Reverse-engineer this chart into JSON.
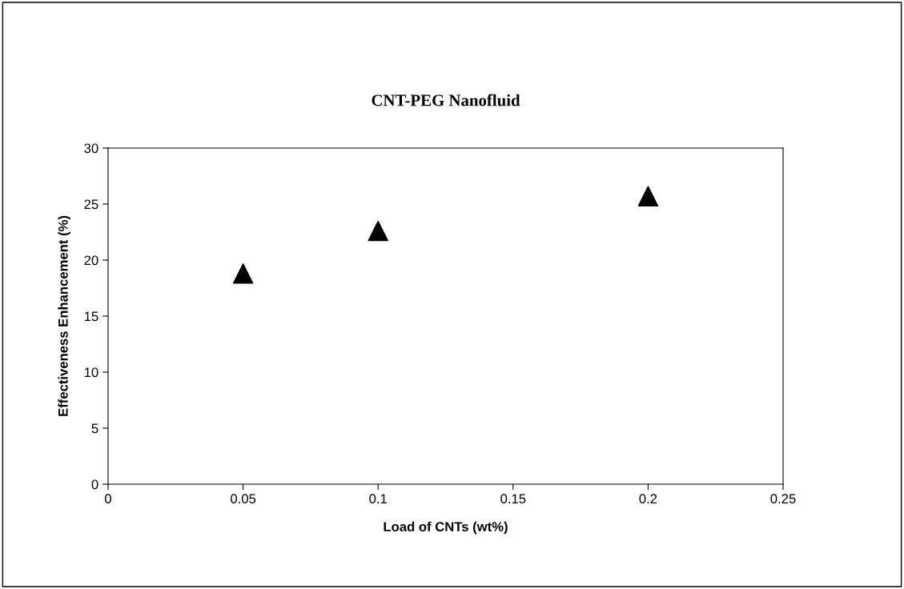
{
  "chart_data": {
    "type": "scatter",
    "title": "CNT-PEG Nanofluid",
    "xlabel": "Load of CNTs (wt%)",
    "ylabel": "Effectiveness Enhancement (%)",
    "x": [
      0.05,
      0.1,
      0.2
    ],
    "series": [
      {
        "color": "#000000",
        "values": [
          18.8,
          22.6,
          25.7
        ]
      }
    ],
    "xlim": [
      0,
      0.25
    ],
    "xticks": [
      0,
      0.05,
      0.1,
      0.15,
      0.2,
      0.25
    ],
    "ylim": [
      0,
      30
    ],
    "yticks": [
      0,
      5,
      10,
      15,
      20,
      25,
      30
    ],
    "marker": "triangle",
    "grid": false,
    "legend": false
  }
}
